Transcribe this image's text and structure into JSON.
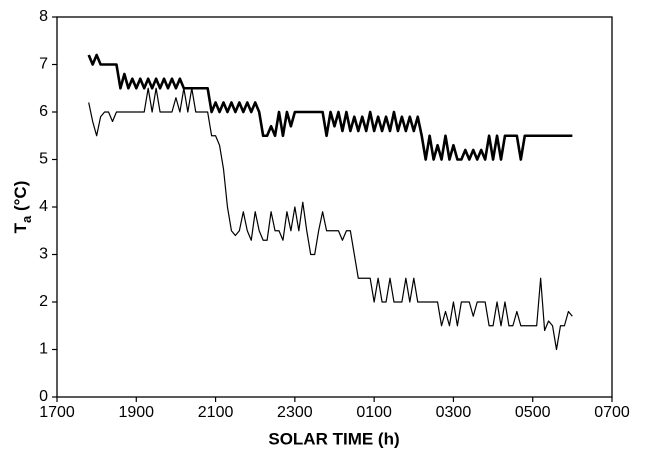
{
  "chart_data": {
    "type": "line",
    "x_label": "SOLAR TIME (h)",
    "y_label_parts": [
      "T",
      "a",
      " (°C)"
    ],
    "x": [
      17.8,
      17.9,
      18.0,
      18.1,
      18.2,
      18.3,
      18.4,
      18.5,
      18.6,
      18.7,
      18.8,
      18.9,
      19.0,
      19.1,
      19.2,
      19.3,
      19.4,
      19.5,
      19.6,
      19.7,
      19.8,
      19.9,
      20.0,
      20.1,
      20.2,
      20.3,
      20.4,
      20.5,
      20.6,
      20.7,
      20.8,
      20.9,
      21.0,
      21.1,
      21.2,
      21.3,
      21.4,
      21.5,
      21.6,
      21.7,
      21.8,
      21.9,
      22.0,
      22.1,
      22.2,
      22.3,
      22.4,
      22.5,
      22.6,
      22.7,
      22.8,
      22.9,
      23.0,
      23.1,
      23.2,
      23.3,
      23.4,
      23.5,
      23.6,
      23.7,
      23.8,
      23.9,
      24.0,
      24.1,
      24.2,
      24.3,
      24.4,
      24.5,
      24.6,
      24.7,
      24.8,
      24.9,
      25.0,
      25.1,
      25.2,
      25.3,
      25.4,
      25.5,
      25.6,
      25.7,
      25.8,
      25.9,
      26.0,
      26.1,
      26.2,
      26.3,
      26.4,
      26.5,
      26.6,
      26.7,
      26.8,
      26.9,
      27.0,
      27.1,
      27.2,
      27.3,
      27.4,
      27.5,
      27.6,
      27.7,
      27.8,
      27.9,
      28.0,
      28.1,
      28.2,
      28.3,
      28.4,
      28.5,
      28.6,
      28.7,
      28.8,
      28.9,
      29.0,
      29.1,
      29.2,
      29.3,
      29.4,
      29.5,
      29.6,
      29.7,
      29.8,
      29.9,
      30.0
    ],
    "series": [
      {
        "color": "#000000",
        "line_width": 2.6,
        "values": [
          7.2,
          7.0,
          7.2,
          7.0,
          7.0,
          7.0,
          7.0,
          7.0,
          6.5,
          6.8,
          6.5,
          6.7,
          6.5,
          6.7,
          6.5,
          6.7,
          6.5,
          6.7,
          6.5,
          6.7,
          6.5,
          6.7,
          6.5,
          6.7,
          6.5,
          6.5,
          6.5,
          6.5,
          6.5,
          6.5,
          6.5,
          6.0,
          6.2,
          6.0,
          6.2,
          6.0,
          6.2,
          6.0,
          6.2,
          6.0,
          6.2,
          6.0,
          6.2,
          6.0,
          5.5,
          5.5,
          5.7,
          5.5,
          6.0,
          5.5,
          6.0,
          5.7,
          6.0,
          6.0,
          6.0,
          6.0,
          6.0,
          6.0,
          6.0,
          6.0,
          5.5,
          6.0,
          5.7,
          6.0,
          5.6,
          6.0,
          5.6,
          5.9,
          5.6,
          5.9,
          5.6,
          6.0,
          5.6,
          5.9,
          5.6,
          5.9,
          5.6,
          6.0,
          5.6,
          5.9,
          5.6,
          5.9,
          5.6,
          5.9,
          5.5,
          5.0,
          5.5,
          5.0,
          5.3,
          5.0,
          5.5,
          5.0,
          5.3,
          5.0,
          5.0,
          5.2,
          5.0,
          5.2,
          5.0,
          5.2,
          5.0,
          5.5,
          5.0,
          5.5,
          5.0,
          5.5,
          5.5,
          5.5,
          5.5,
          5.0,
          5.5,
          5.5,
          5.5,
          5.5,
          5.5,
          5.5,
          5.5,
          5.5,
          5.5,
          5.5,
          5.5,
          5.5,
          5.5
        ]
      },
      {
        "color": "#000000",
        "line_width": 1.2,
        "values": [
          6.2,
          5.8,
          5.5,
          5.9,
          6.0,
          6.0,
          5.8,
          6.0,
          6.0,
          6.0,
          6.0,
          6.0,
          6.0,
          6.0,
          6.0,
          6.5,
          6.0,
          6.5,
          6.0,
          6.0,
          6.0,
          6.0,
          6.3,
          6.0,
          6.5,
          6.0,
          6.5,
          6.0,
          6.0,
          6.0,
          6.0,
          5.5,
          5.5,
          5.3,
          4.8,
          4.0,
          3.5,
          3.4,
          3.5,
          3.9,
          3.5,
          3.3,
          3.9,
          3.5,
          3.3,
          3.3,
          3.9,
          3.5,
          3.5,
          3.3,
          3.9,
          3.5,
          4.0,
          3.5,
          4.1,
          3.5,
          3.0,
          3.0,
          3.5,
          3.9,
          3.5,
          3.5,
          3.5,
          3.5,
          3.3,
          3.5,
          3.5,
          3.0,
          2.5,
          2.5,
          2.5,
          2.5,
          2.0,
          2.5,
          2.0,
          2.0,
          2.5,
          2.0,
          2.0,
          2.0,
          2.5,
          2.0,
          2.5,
          2.0,
          2.0,
          2.0,
          2.0,
          2.0,
          2.0,
          1.5,
          1.8,
          1.5,
          2.0,
          1.5,
          2.0,
          2.0,
          2.0,
          1.7,
          2.0,
          2.0,
          2.0,
          1.5,
          1.5,
          2.0,
          1.5,
          2.0,
          1.5,
          1.5,
          1.8,
          1.5,
          1.5,
          1.5,
          1.5,
          1.5,
          2.5,
          1.4,
          1.6,
          1.5,
          1.0,
          1.5,
          1.5,
          1.8,
          1.7
        ]
      }
    ],
    "xlim": [
      17,
      31
    ],
    "xticks": [
      {
        "value": 17,
        "label": "1700"
      },
      {
        "value": 19,
        "label": "1900"
      },
      {
        "value": 21,
        "label": "2100"
      },
      {
        "value": 23,
        "label": "2300"
      },
      {
        "value": 25,
        "label": "0100"
      },
      {
        "value": 27,
        "label": "0300"
      },
      {
        "value": 29,
        "label": "0500"
      },
      {
        "value": 31,
        "label": "0700"
      }
    ],
    "ylim": [
      0,
      8
    ],
    "yticks": [
      0,
      1,
      2,
      3,
      4,
      5,
      6,
      7,
      8
    ],
    "grid": false
  }
}
